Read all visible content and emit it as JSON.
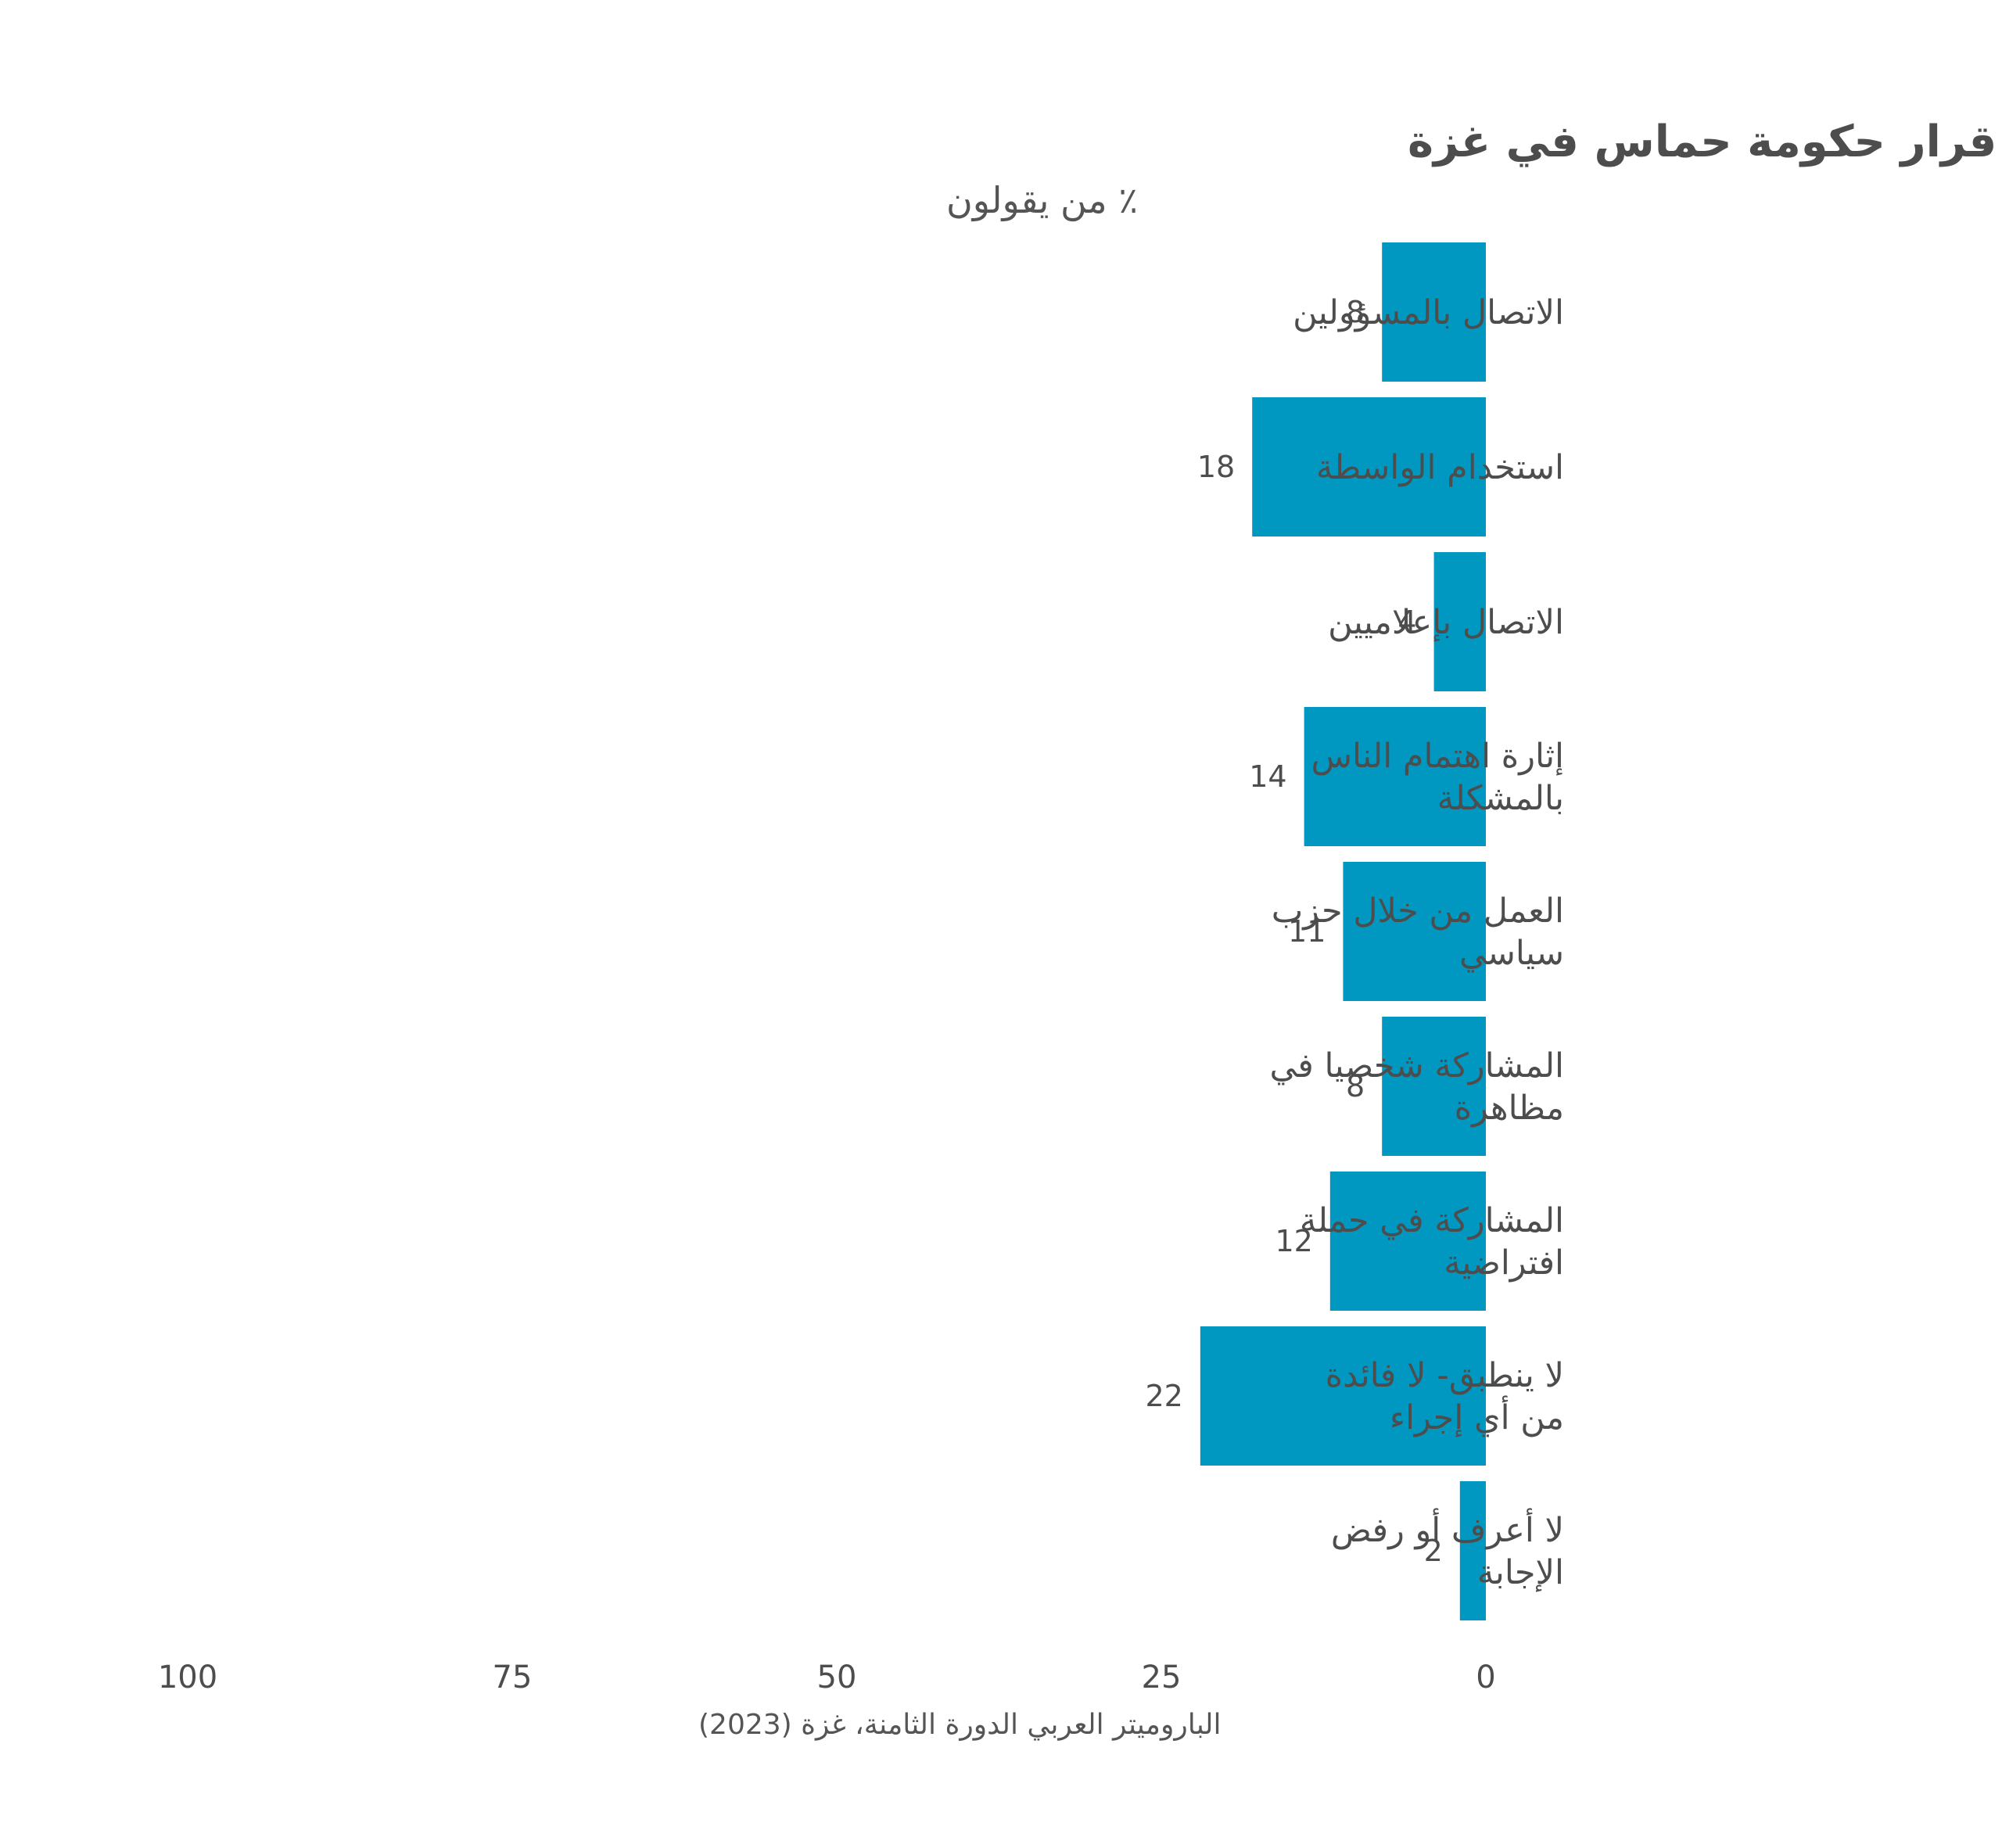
{
  "chart_data": {
    "type": "bar",
    "orientation": "horizontal",
    "direction": "right-to-left",
    "title": "الإجراء الأكثر جدوى للتأثير على قرار حكومة حماس في غزة",
    "subtitle": "٪ من يقولون",
    "source": "الباروميتر العربي الدورة الثامنة، غزة (2023)",
    "categories": [
      [
        "الاتصال بالمسؤولين"
      ],
      [
        "استخدام الواسطة"
      ],
      [
        "الاتصال بإعلاميين"
      ],
      [
        "إثارة اهتمام الناس",
        "بالمشكلة"
      ],
      [
        "العمل من خلال حزب",
        "سياسي"
      ],
      [
        "المشاركة شخصيا في",
        "مظاهرة"
      ],
      [
        "المشاركة في حملة",
        "افتراضية"
      ],
      [
        "لا ينطبق- لا فائدة",
        "من أي إجراء"
      ],
      [
        "لا أعرف أو رفض",
        "الإجابة"
      ]
    ],
    "values": [
      8,
      18,
      4,
      14,
      11,
      8,
      12,
      22,
      2
    ],
    "xlim": [
      0,
      100
    ],
    "ticks": [
      0,
      25,
      50,
      75,
      100
    ],
    "grid": false,
    "bar_color": "#0098c1"
  }
}
